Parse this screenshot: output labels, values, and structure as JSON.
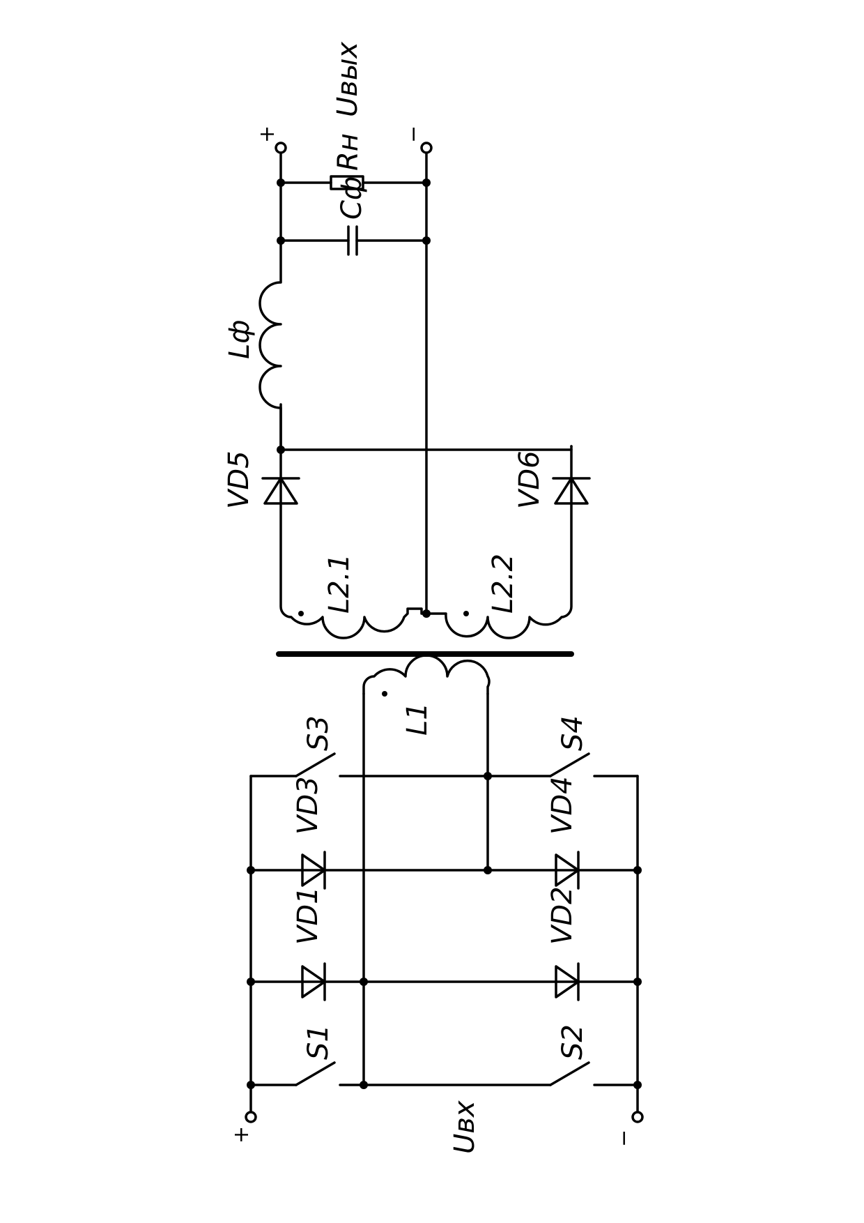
{
  "input": {
    "voltage_label": "Uвх",
    "plus": "+",
    "minus": "−"
  },
  "output": {
    "voltage_label": "Uвых",
    "plus": "+",
    "minus": "−"
  },
  "switches": {
    "s1": "S1",
    "s2": "S2",
    "s3": "S3",
    "s4": "S4"
  },
  "diodes": {
    "vd1": "VD1",
    "vd2": "VD2",
    "vd3": "VD3",
    "vd4": "VD4",
    "vd5": "VD5",
    "vd6": "VD6"
  },
  "windings": {
    "primary": "L1",
    "secondary_1": "L2.1",
    "secondary_2": "L2.2"
  },
  "filter": {
    "inductor": "Lф",
    "capacitor": "Cф"
  },
  "load": {
    "resistor": "Rн"
  }
}
